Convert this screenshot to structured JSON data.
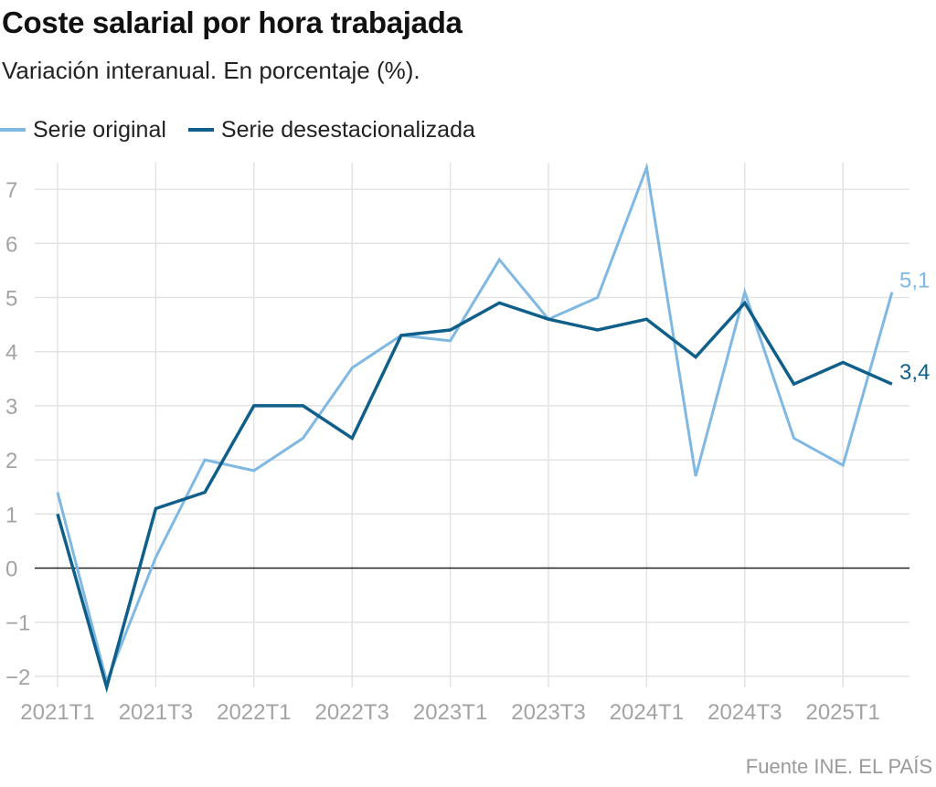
{
  "chart_data": {
    "type": "line",
    "title": "Coste salarial por hora trabajada",
    "subtitle": "Variación interanual. En porcentaje (%).",
    "source": "Fuente INE. EL PAÍS",
    "x": [
      "2021T1",
      "2021T2",
      "2021T3",
      "2021T4",
      "2022T1",
      "2022T2",
      "2022T3",
      "2022T4",
      "2023T1",
      "2023T2",
      "2023T3",
      "2023T4",
      "2024T1",
      "2024T2",
      "2024T3",
      "2024T4",
      "2025T1",
      "2025T2"
    ],
    "x_tick_labels": [
      "2021T1",
      "2021T3",
      "2022T1",
      "2022T3",
      "2023T1",
      "2023T3",
      "2024T1",
      "2024T3",
      "2025T1"
    ],
    "y_ticks": [
      7,
      6,
      5,
      4,
      3,
      2,
      1,
      0,
      -1,
      -2
    ],
    "y_tick_labels": [
      "7",
      "6",
      "5",
      "4",
      "3",
      "2",
      "1",
      "0",
      "−1",
      "−2"
    ],
    "ylim": [
      -2.2,
      7.4
    ],
    "grid": true,
    "legend_position": "top-left",
    "series": [
      {
        "name": "Serie original",
        "color": "#7fb8e3",
        "values": [
          1.4,
          -2.1,
          0.2,
          2.0,
          1.8,
          2.4,
          3.7,
          4.3,
          4.2,
          5.7,
          4.6,
          5.0,
          7.4,
          1.7,
          5.1,
          2.4,
          1.9,
          5.1
        ],
        "end_label": "5,1"
      },
      {
        "name": "Serie desestacionalizada",
        "color": "#0f5f8a",
        "values": [
          1.0,
          -2.2,
          1.1,
          1.4,
          3.0,
          3.0,
          2.4,
          4.3,
          4.4,
          4.9,
          4.6,
          4.4,
          4.6,
          3.9,
          4.9,
          3.4,
          3.8,
          3.4
        ],
        "end_label": "3,4"
      }
    ]
  }
}
